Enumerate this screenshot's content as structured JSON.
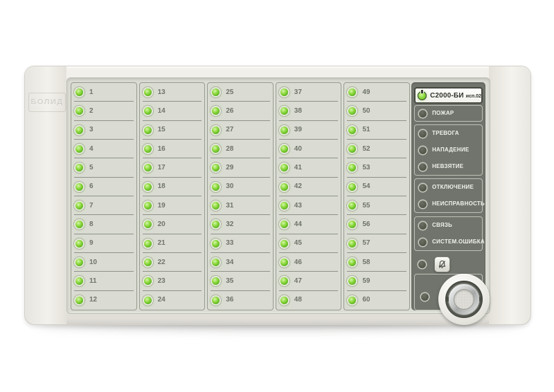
{
  "device": {
    "brand_emboss": "БОЛИД",
    "header": {
      "model": "С2000-БИ",
      "variant": "исп.02",
      "power_led_state": "on"
    }
  },
  "zones": {
    "led_state_all": "on",
    "columns": [
      [
        1,
        2,
        3,
        4,
        5,
        6,
        7,
        8,
        9,
        10,
        11,
        12
      ],
      [
        13,
        14,
        15,
        16,
        17,
        18,
        19,
        20,
        21,
        22,
        23,
        24
      ],
      [
        25,
        26,
        27,
        28,
        29,
        30,
        31,
        32,
        33,
        34,
        35,
        36
      ],
      [
        37,
        38,
        39,
        40,
        41,
        42,
        43,
        44,
        45,
        46,
        47,
        48
      ],
      [
        49,
        50,
        51,
        52,
        53,
        54,
        55,
        56,
        57,
        58,
        59,
        60
      ]
    ]
  },
  "status_panel": {
    "groups": [
      {
        "name": "fire",
        "items": [
          {
            "id": "fire",
            "label": "ПОЖАР",
            "led": "off"
          }
        ]
      },
      {
        "name": "alarm",
        "items": [
          {
            "id": "alarm",
            "label": "ТРЕВОГА",
            "led": "off"
          },
          {
            "id": "attack",
            "label": "НАПАДЕНИЕ",
            "led": "off"
          },
          {
            "id": "not-armed",
            "label": "НЕВЗЯТИЕ",
            "led": "off"
          }
        ]
      },
      {
        "name": "disable",
        "items": [
          {
            "id": "disable",
            "label": "ОТКЛЮЧЕНИЕ",
            "led": "off"
          },
          {
            "id": "fault",
            "label": "НЕИСПРАВНОСТЬ",
            "led": "off"
          }
        ]
      },
      {
        "name": "comm",
        "items": [
          {
            "id": "link",
            "label": "СВЯЗЬ",
            "led": "off"
          },
          {
            "id": "system-error",
            "label": "СИСТЕМ.ОШИБКА",
            "led": "off"
          }
        ]
      }
    ],
    "mute": {
      "icon": "bell-slash-icon",
      "led": "off"
    },
    "reader": {
      "led": "off"
    }
  },
  "colors": {
    "led_on": "#7cd334",
    "panel_dark": "#70746c",
    "case": "#edebe5",
    "face": "#dcded5"
  }
}
